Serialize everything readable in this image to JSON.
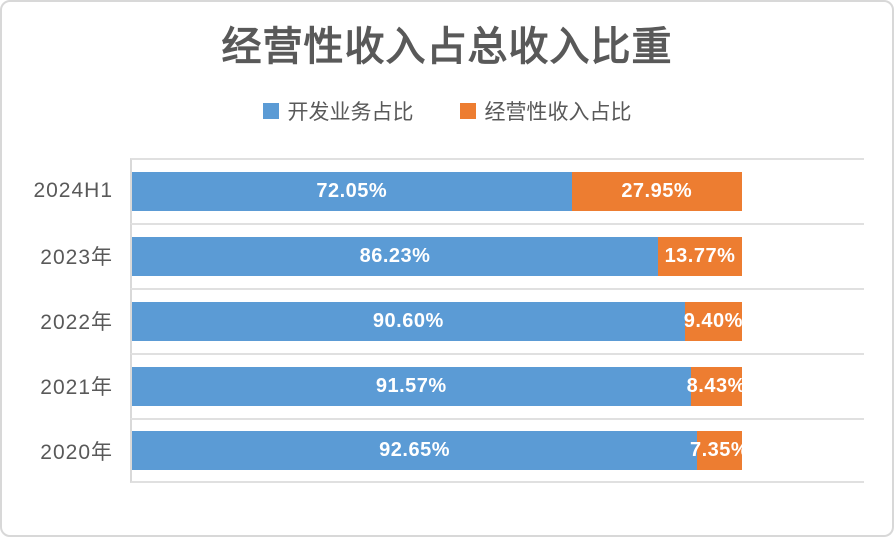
{
  "title": "经营性收入占总收入比重",
  "legend": [
    {
      "label": "开发业务占比",
      "color": "#5B9BD5"
    },
    {
      "label": "经营性收入占比",
      "color": "#ED7D31"
    }
  ],
  "chart_data": {
    "type": "bar",
    "orientation": "horizontal",
    "stacked": true,
    "title": "经营性收入占总收入比重",
    "categories": [
      "2024H1",
      "2023年",
      "2022年",
      "2021年",
      "2020年"
    ],
    "series": [
      {
        "name": "开发业务占比",
        "color": "#5B9BD5",
        "values": [
          72.05,
          86.23,
          90.6,
          91.57,
          92.65
        ],
        "labels": [
          "72.05%",
          "86.23%",
          "90.60%",
          "91.57%",
          "92.65%"
        ]
      },
      {
        "name": "经营性收入占比",
        "color": "#ED7D31",
        "values": [
          27.95,
          13.77,
          9.4,
          8.43,
          7.35
        ],
        "labels": [
          "27.95%",
          "13.77%",
          "9.40%",
          "8.43%",
          "7.35%"
        ]
      }
    ],
    "xlim": [
      0,
      120
    ],
    "data_label_color": "#FFFFFF",
    "legend_position": "top",
    "grid": "category-band-separators",
    "axis_tick_labels_visible": false
  },
  "colors": {
    "text": "#595959",
    "gridline": "#E0E0E0",
    "axis_line": "#D9D9D9",
    "card_border": "#D8D8D8",
    "background": "#FFFFFF"
  }
}
